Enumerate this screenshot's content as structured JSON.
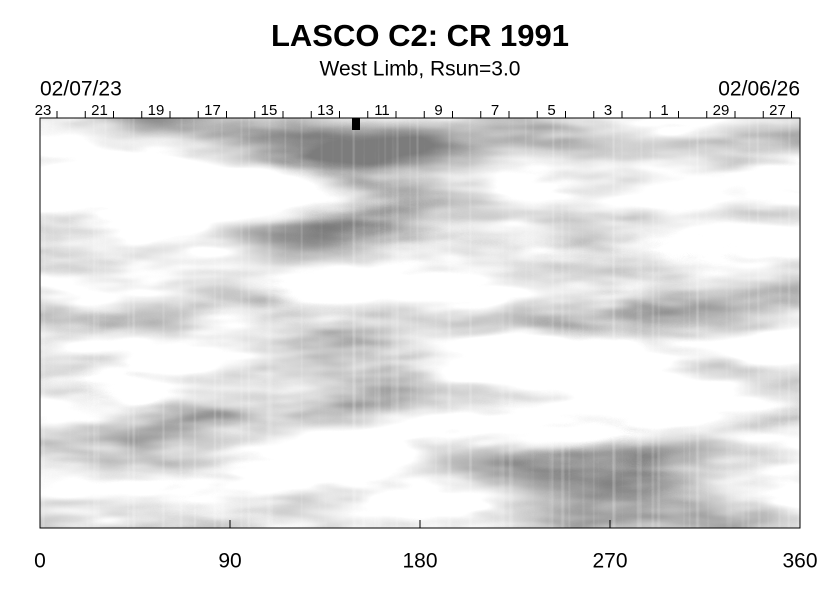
{
  "chart_data": {
    "type": "image",
    "title": "LASCO C2: CR 1991",
    "subtitle": "West Limb, Rsun=3.0",
    "start_date": "02/07/23",
    "end_date": "02/06/26",
    "top_day_labels": [
      "23",
      "21",
      "19",
      "17",
      "15",
      "13",
      "11",
      "9",
      "7",
      "5",
      "3",
      "1",
      "29",
      "27"
    ],
    "xlim": [
      0,
      360
    ],
    "xticks": [
      0,
      90,
      180,
      270,
      360
    ]
  }
}
